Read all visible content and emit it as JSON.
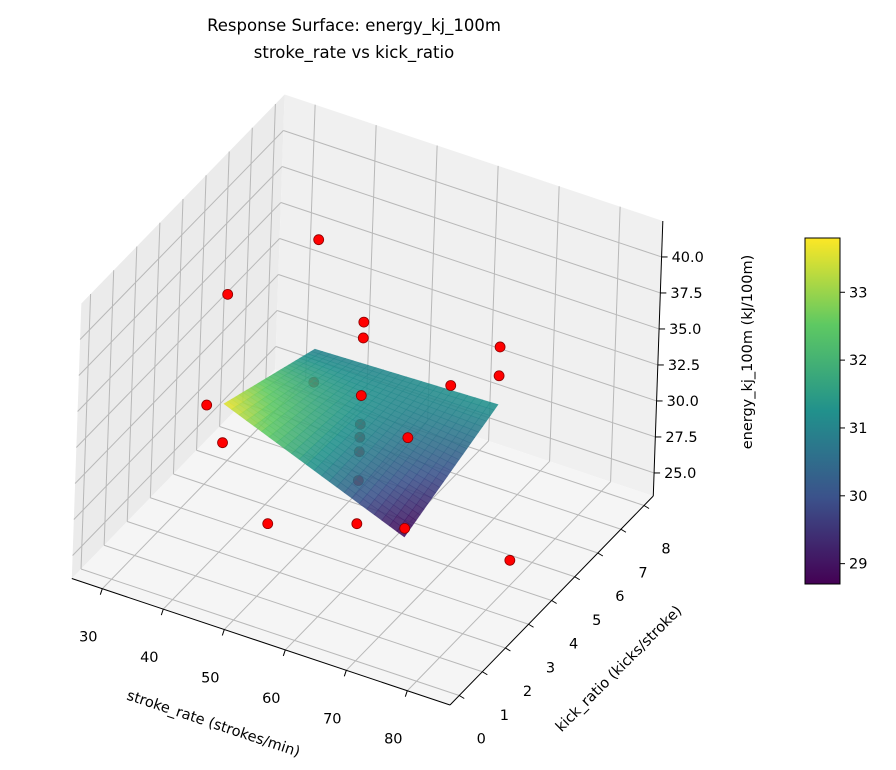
{
  "chart_data": {
    "type": "surface3d",
    "title": "Response Surface: energy_kj_100m",
    "subtitle": "stroke_rate vs kick_ratio",
    "xlabel": "stroke_rate (strokes/min)",
    "ylabel": "kick_ratio (kicks/stroke)",
    "zlabel": "energy_kj_100m (kJ/100m)",
    "xlim": [
      25,
      87
    ],
    "ylim": [
      -0.4,
      8.4
    ],
    "zlim": [
      23.4,
      42.5
    ],
    "x_ticks": [
      30,
      40,
      50,
      60,
      70,
      80
    ],
    "y_ticks": [
      0,
      1,
      2,
      3,
      4,
      5,
      6,
      7,
      8
    ],
    "z_ticks": [
      "25.0",
      "27.5",
      "30.0",
      "32.5",
      "35.0",
      "37.5",
      "40.0"
    ],
    "grid": true,
    "colormap": "viridis",
    "surface": {
      "x": [
        40,
        47.5,
        55,
        62.5,
        70
      ],
      "y": [
        2,
        3,
        4,
        5,
        6
      ],
      "z": [
        [
          33.7,
          32.45,
          31.2,
          29.95,
          28.7
        ],
        [
          33.0,
          32.09,
          31.18,
          30.26,
          29.35
        ],
        [
          32.3,
          31.73,
          31.15,
          30.58,
          30.0
        ],
        [
          31.6,
          31.36,
          31.13,
          30.89,
          30.65
        ],
        [
          30.9,
          31.0,
          31.1,
          31.2,
          31.3
        ]
      ]
    },
    "points": {
      "color": "#ff0000",
      "edge_color": "#8b0000",
      "data": [
        {
          "x": 40,
          "y": 2,
          "z": 31.0
        },
        {
          "x": 40,
          "y": 2,
          "z": 41.3
        },
        {
          "x": 70,
          "y": 2,
          "z": 29.3
        },
        {
          "x": 70,
          "y": 2,
          "z": 35.6
        },
        {
          "x": 40,
          "y": 6,
          "z": 28.6
        },
        {
          "x": 40,
          "y": 6,
          "z": 38.5
        },
        {
          "x": 70,
          "y": 6,
          "z": 33.3
        },
        {
          "x": 70,
          "y": 6,
          "z": 35.3
        },
        {
          "x": 30,
          "y": 4,
          "z": 28.9
        },
        {
          "x": 80,
          "y": 4,
          "z": 25.2
        },
        {
          "x": 55,
          "y": 0,
          "z": 30.8
        },
        {
          "x": 55,
          "y": 8,
          "z": 27.2
        },
        {
          "x": 55,
          "y": 4,
          "z": 24.2
        },
        {
          "x": 55,
          "y": 4,
          "z": 27.2
        },
        {
          "x": 55,
          "y": 4,
          "z": 29.2
        },
        {
          "x": 55,
          "y": 4,
          "z": 30.2
        },
        {
          "x": 55,
          "y": 4,
          "z": 31.1
        },
        {
          "x": 55,
          "y": 4,
          "z": 33.1
        },
        {
          "x": 55,
          "y": 4,
          "z": 37.1
        },
        {
          "x": 55,
          "y": 4,
          "z": 38.2
        }
      ]
    },
    "colorbar": {
      "range": [
        28.7,
        33.8
      ],
      "ticks": [
        "29",
        "30",
        "31",
        "32",
        "33"
      ],
      "placement": "right"
    }
  }
}
